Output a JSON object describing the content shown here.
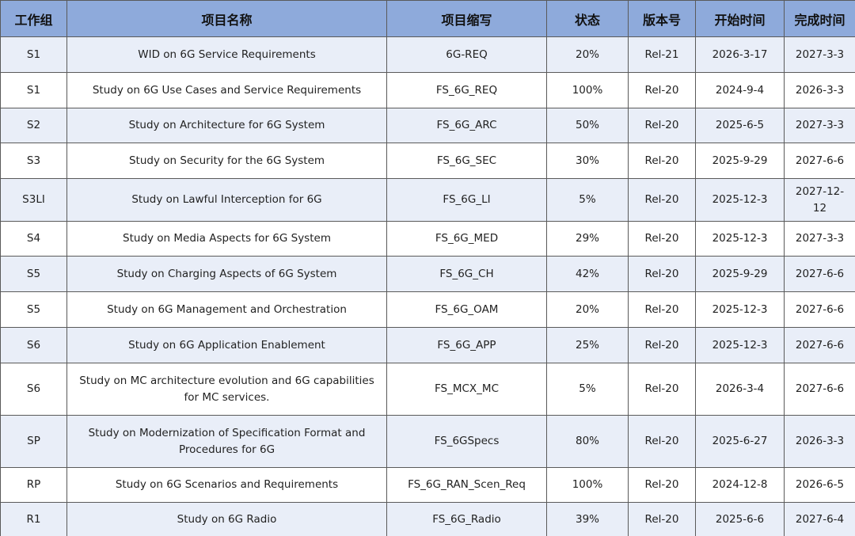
{
  "table": {
    "header": [
      "工作组",
      "项目名称",
      "项目缩写",
      "状态",
      "版本号",
      "开始时间",
      "完成时间"
    ],
    "rows": [
      [
        "S1",
        "WID on 6G Service Requirements",
        "6G-REQ",
        "20%",
        "Rel-21",
        "2026-3-17",
        "2027-3-3"
      ],
      [
        "S1",
        "Study on 6G Use Cases and Service Requirements",
        "FS_6G_REQ",
        "100%",
        "Rel-20",
        "2024-9-4",
        "2026-3-3"
      ],
      [
        "S2",
        "Study on Architecture for 6G System",
        "FS_6G_ARC",
        "50%",
        "Rel-20",
        "2025-6-5",
        "2027-3-3"
      ],
      [
        "S3",
        "Study on Security for the 6G System",
        "FS_6G_SEC",
        "30%",
        "Rel-20",
        "2025-9-29",
        "2027-6-6"
      ],
      [
        "S3LI",
        "Study on Lawful Interception for 6G",
        "FS_6G_LI",
        "5%",
        "Rel-20",
        "2025-12-3",
        "2027-12-12"
      ],
      [
        "S4",
        "Study on Media Aspects for 6G System",
        "FS_6G_MED",
        "29%",
        "Rel-20",
        "2025-12-3",
        "2027-3-3"
      ],
      [
        "S5",
        "Study on Charging Aspects of 6G System",
        "FS_6G_CH",
        "42%",
        "Rel-20",
        "2025-9-29",
        "2027-6-6"
      ],
      [
        "S5",
        "Study on 6G Management and Orchestration",
        "FS_6G_OAM",
        "20%",
        "Rel-20",
        "2025-12-3",
        "2027-6-6"
      ],
      [
        "S6",
        "Study on 6G Application Enablement",
        "FS_6G_APP",
        "25%",
        "Rel-20",
        "2025-12-3",
        "2027-6-6"
      ],
      [
        "S6",
        "Study on MC architecture evolution and 6G capabilities for MC services.",
        "FS_MCX_MC",
        "5%",
        "Rel-20",
        "2026-3-4",
        "2027-6-6"
      ],
      [
        "SP",
        "Study on Modernization of Specification Format and Procedures for 6G",
        "FS_6GSpecs",
        "80%",
        "Rel-20",
        "2025-6-27",
        "2026-3-3"
      ],
      [
        "RP",
        "Study on 6G Scenarios and Requirements",
        "FS_6G_RAN_Scen_Req",
        "100%",
        "Rel-20",
        "2024-12-8",
        "2026-6-5"
      ],
      [
        "R1",
        "Study on 6G Radio",
        "FS_6G_Radio",
        "39%",
        "Rel-20",
        "2025-6-6",
        "2027-6-4"
      ]
    ]
  }
}
